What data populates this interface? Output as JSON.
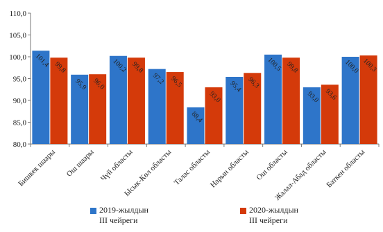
{
  "chart_data": {
    "type": "bar",
    "categories": [
      "Бишкек шаары",
      "Ош шаары",
      "Чүй областы",
      "Ысык-Көл областы",
      "Талас областы",
      "Нарын областы",
      "Ош областы",
      "Жалал-Абад областы",
      "Баткен областы"
    ],
    "series": [
      {
        "name": "2019-жылдын III чейреги",
        "values": [
          101.4,
          95.9,
          100.2,
          97.2,
          88.4,
          95.4,
          100.5,
          93.0,
          100.0
        ],
        "labels": [
          "101,4",
          "95,9",
          "100,2",
          "97,2",
          "88,4",
          "95,4",
          "100,5",
          "93,0",
          "100,0"
        ],
        "color": "#2e75c9"
      },
      {
        "name": "2020-жылдын III чейреги",
        "values": [
          99.8,
          96.0,
          99.8,
          96.5,
          93.0,
          96.3,
          99.8,
          93.6,
          100.3
        ],
        "labels": [
          "99,8",
          "96,0",
          "99,8",
          "96,5",
          "93,0",
          "96,3",
          "99,8",
          "93,6",
          "100,3"
        ],
        "color": "#d43a0a"
      }
    ],
    "y_ticks": [
      "80,0",
      "85,0",
      "90,0",
      "95,0",
      "100,0",
      "105,0",
      "110,0"
    ],
    "ylim": [
      80,
      110
    ],
    "grid": false,
    "legend_position": "bottom"
  },
  "legend": {
    "series1_line1": "2019-жылдын",
    "series1_line2": "III чейреги",
    "series2_line1": "2020-жылдын",
    "series2_line2": "III чейреги"
  }
}
